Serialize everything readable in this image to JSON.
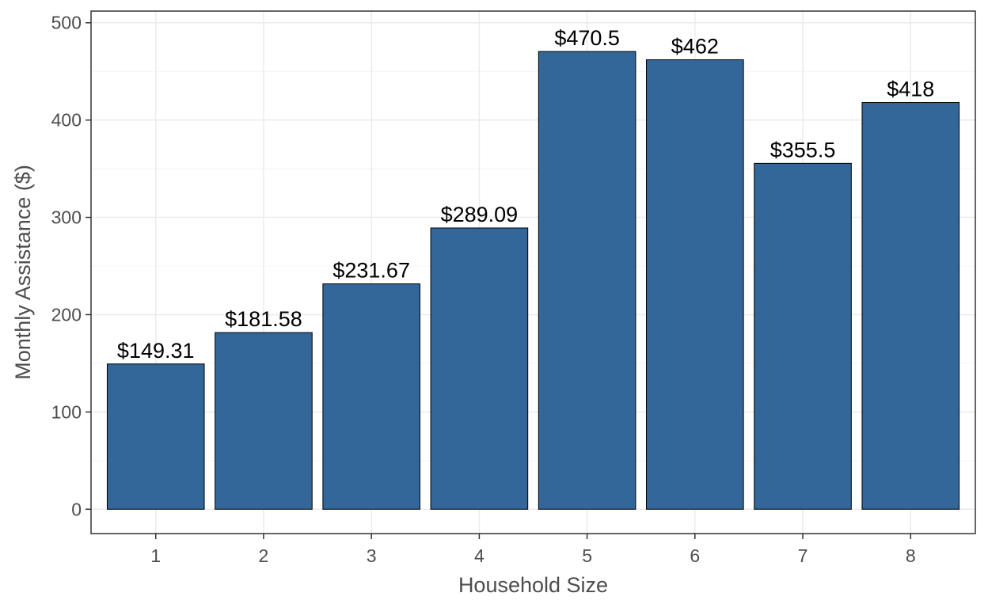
{
  "chart_data": {
    "type": "bar",
    "title": "",
    "xlabel": "Household Size",
    "ylabel": "Monthly Assistance ($)",
    "categories": [
      "1",
      "2",
      "3",
      "4",
      "5",
      "6",
      "7",
      "8"
    ],
    "values": [
      149.31,
      181.58,
      231.67,
      289.09,
      470.5,
      462,
      355.5,
      418
    ],
    "data_labels": [
      "$149.31",
      "$181.58",
      "$231.67",
      "$289.09",
      "$470.5",
      "$462",
      "$355.5",
      "$418"
    ],
    "ylim": [
      -25,
      512
    ],
    "yticks": [
      0,
      100,
      200,
      300,
      400,
      500
    ],
    "grid": true,
    "legend": "none",
    "colors": {
      "bar_fill": "#336699",
      "bar_outline": "#000000",
      "grid_major": "#ebebeb",
      "grid_minor": "#f4f4f4",
      "panel_border": "#333333"
    }
  }
}
